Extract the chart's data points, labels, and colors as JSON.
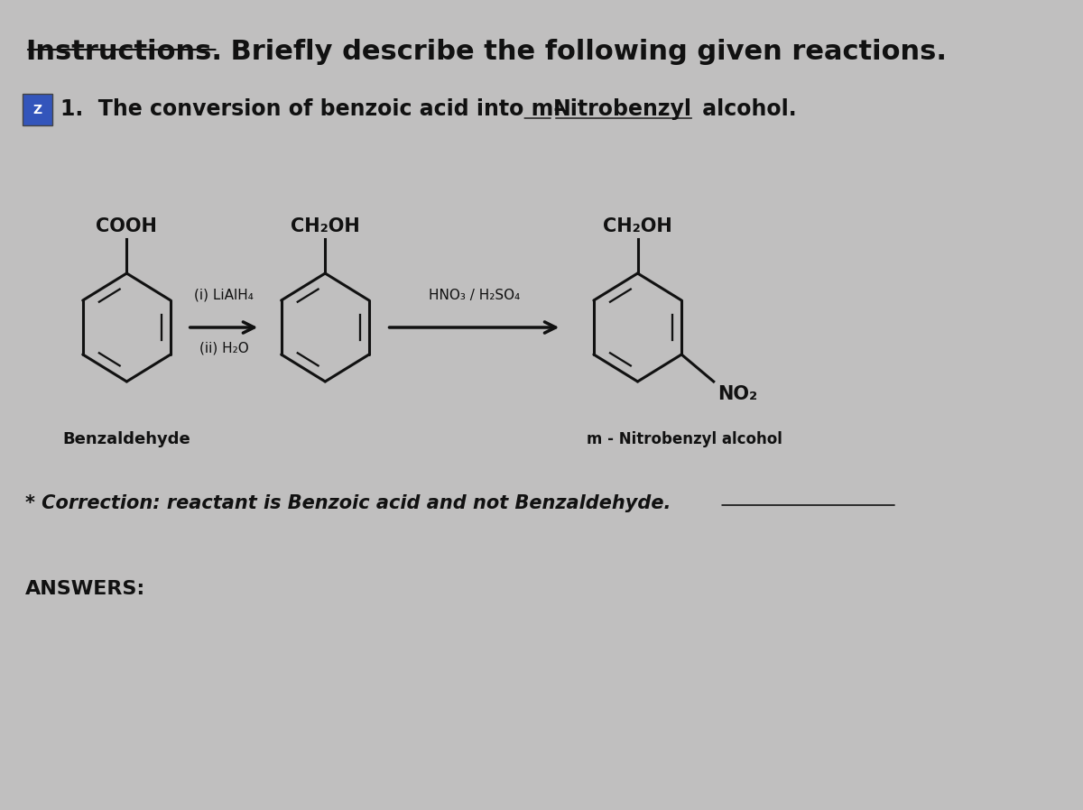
{
  "bg_color": "#c0bfbf",
  "text_color": "#111111",
  "arrow_color": "#111111",
  "ring_color": "#111111",
  "title_underlined": "Instructions.",
  "title_rest": " Briefly describe the following given reactions.",
  "subtitle": "1.  The conversion of benzoic acid into m–Nitrobenzyl alcohol.",
  "correction": "* Correction: reactant is Benzoic acid and not Benzaldehyde.",
  "answers_label": "ANSWERS:",
  "benzaldehyde_label": "Benzaldehyde",
  "nitrobenzyl_label": "m - Nitrobenzyl alcohol",
  "reagent1_line1": "(i) LiAlH₄",
  "reagent1_line2": "(ii) H₂O",
  "reagent2": "HNO₃ / H₂SO₄",
  "cooh_label": "COOH",
  "ch2oh_label1": "CH₂OH",
  "ch2oh_label2": "CH₂OH",
  "no2_label": "NO₂",
  "font_size_title": 22,
  "font_size_subtitle": 17,
  "font_size_body": 14,
  "font_size_small": 11,
  "font_size_mol_label": 15,
  "font_size_bottom_label": 13
}
